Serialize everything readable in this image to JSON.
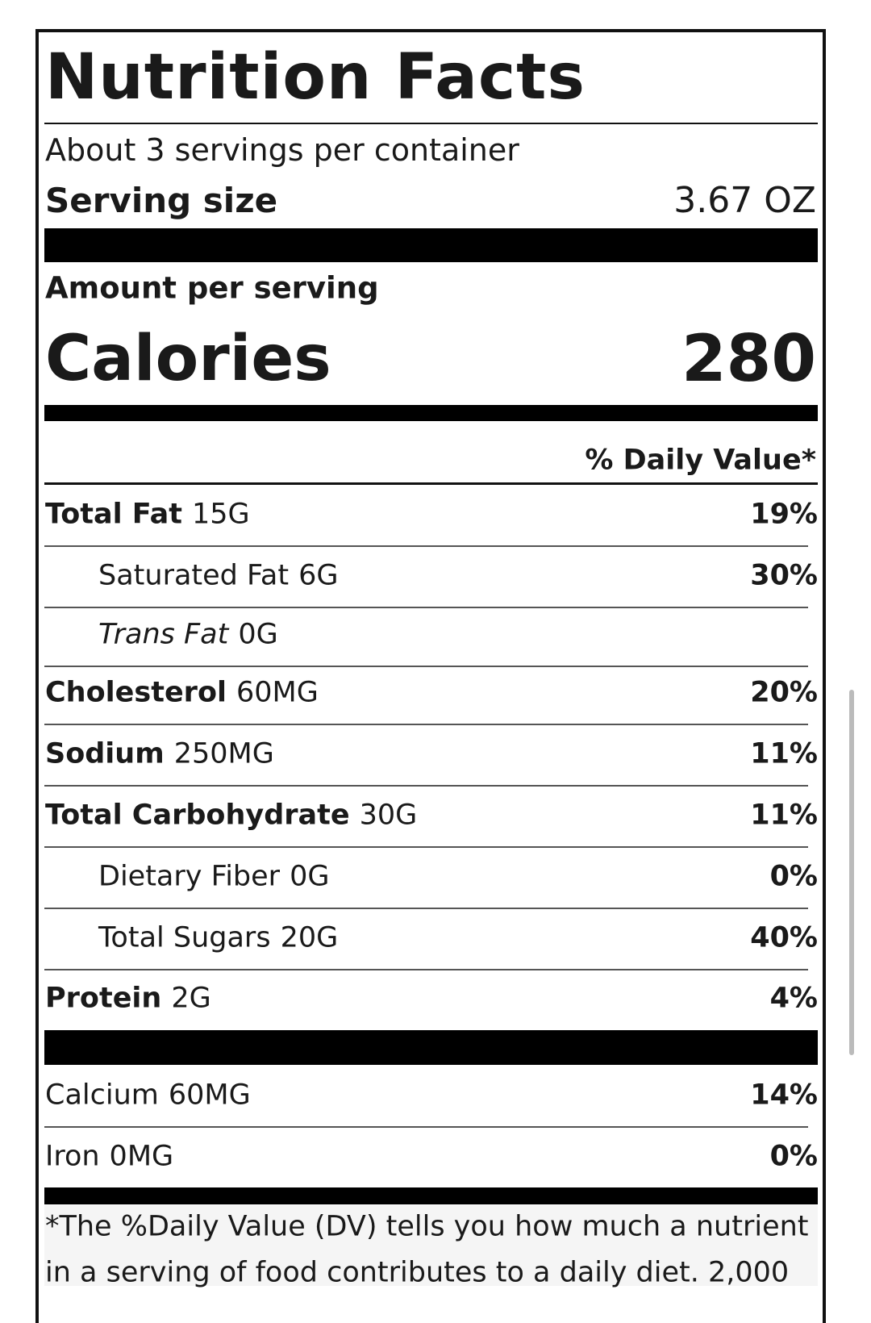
{
  "header": {
    "title": "Nutrition Facts",
    "servings": "About 3 servings per container",
    "serving_size_label": "Serving size",
    "serving_size": "3.67 OZ"
  },
  "calories": {
    "heading": "Amount per serving",
    "label": "Calories",
    "value": "280"
  },
  "daily_value_heading": "% Daily Value*",
  "nutrients": [
    {
      "name": "Total Fat",
      "amount": "15G",
      "dv": "19%"
    },
    {
      "name": "Saturated Fat",
      "amount": "6G",
      "dv": "30%"
    },
    {
      "name": "Trans Fat",
      "amount": "0G"
    },
    {
      "name": "Cholesterol",
      "amount": "60MG",
      "dv": "20%"
    },
    {
      "name": "Sodium",
      "amount": "250MG",
      "dv": "11%"
    },
    {
      "name": "Total Carbohydrate",
      "amount": "30G",
      "dv": "11%"
    },
    {
      "name": "Dietary Fiber",
      "amount": "0G",
      "dv": "0%"
    },
    {
      "name": "Total Sugars",
      "amount": "20G",
      "dv": "40%"
    },
    {
      "name": "Protein",
      "amount": "2G",
      "dv": "4%"
    }
  ],
  "minerals": [
    {
      "name": "Calcium",
      "amount": "60MG",
      "dv": "14%"
    },
    {
      "name": "Iron",
      "amount": "0MG",
      "dv": "0%"
    }
  ],
  "footnote": [
    "*The %Daily Value (DV) tells you how much a nutrient",
    "in a serving of food contributes to a daily diet. 2,000"
  ]
}
